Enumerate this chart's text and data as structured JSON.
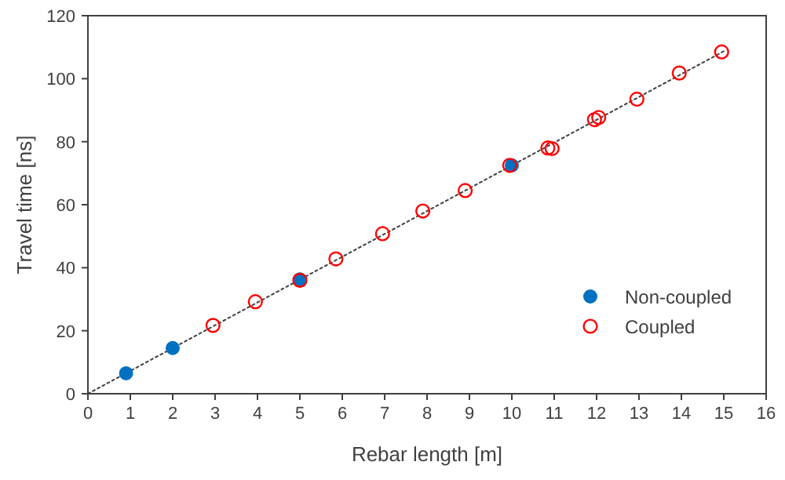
{
  "chart_data": {
    "type": "scatter",
    "xlabel": "Rebar length [m]",
    "ylabel": "Travel time [ns]",
    "xlim": [
      0,
      16
    ],
    "ylim": [
      0,
      120
    ],
    "xticks": [
      0,
      1,
      2,
      3,
      4,
      5,
      6,
      7,
      8,
      9,
      10,
      11,
      12,
      13,
      14,
      15,
      16
    ],
    "yticks": [
      0,
      20,
      40,
      60,
      80,
      100,
      120
    ],
    "grid": false,
    "legend": "bottom right",
    "series": [
      {
        "name": "Non-coupled",
        "color": "#0070c0",
        "marker": "circle",
        "x": [
          0.9,
          2,
          5,
          10
        ],
        "values": [
          6.5,
          14.5,
          36.3,
          72.5
        ]
      },
      {
        "name": "Coupled",
        "color": "#ff0000",
        "marker": "circle",
        "x": [
          2.95,
          3.95,
          5,
          5.85,
          6.95,
          7.9,
          8.9,
          9.95,
          10.85,
          10.95,
          11.95,
          12.05,
          12.95,
          13.95,
          14.95
        ],
        "values": [
          21.7,
          29.2,
          36,
          42.8,
          50.8,
          58,
          64.5,
          72.5,
          78,
          77.8,
          87,
          87.7,
          93.5,
          101.8,
          108.5
        ]
      },
      {
        "type": "line",
        "color": "#404040",
        "line_style": "dotted",
        "marker": "none",
        "x": [
          0,
          15
        ],
        "values": [
          0,
          108.7
        ]
      }
    ]
  }
}
